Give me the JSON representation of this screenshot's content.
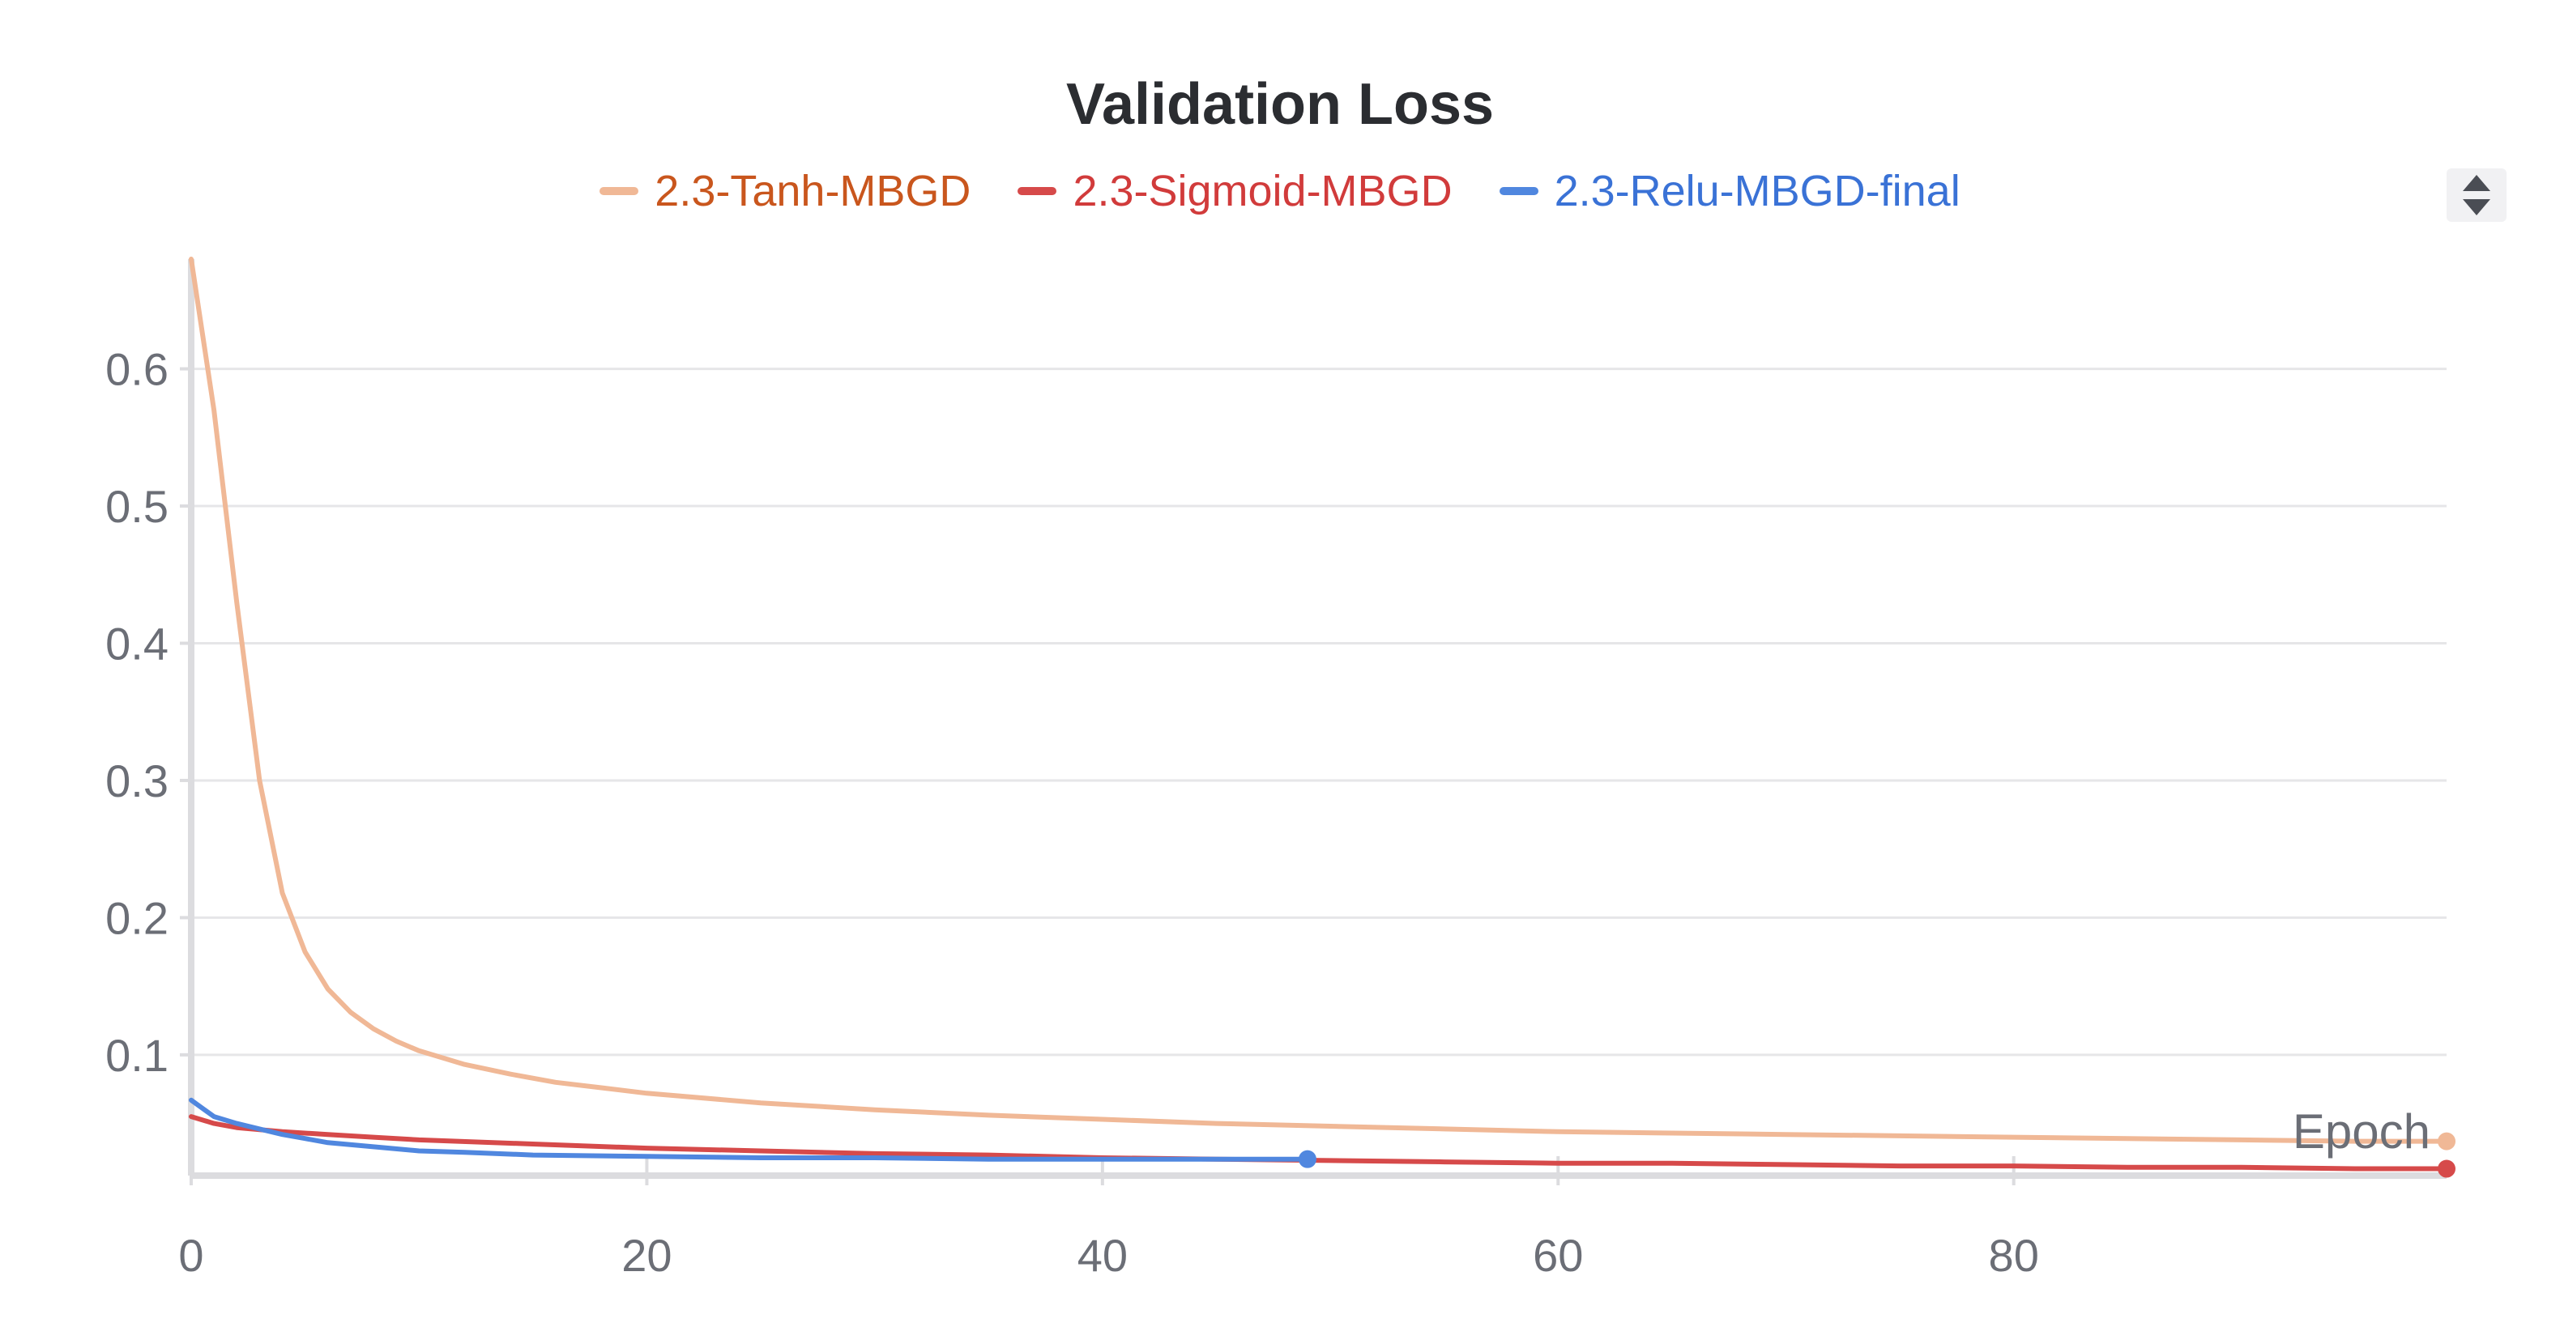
{
  "chart_data": {
    "type": "line",
    "title": "Validation Loss",
    "xlabel": "Epoch",
    "ylabel": "",
    "xlim": [
      0,
      99
    ],
    "ylim": [
      0.012,
      0.68
    ],
    "xticks": [
      0,
      20,
      40,
      60,
      80
    ],
    "yticks": [
      0.1,
      0.2,
      0.3,
      0.4,
      0.5,
      0.6
    ],
    "grid": true,
    "legend_position": "top",
    "series": [
      {
        "name": "2.3-Tanh-MBGD",
        "color": "#f0b896",
        "label_color": "#c9561d",
        "x": [
          0,
          1,
          2,
          3,
          4,
          5,
          6,
          7,
          8,
          9,
          10,
          12,
          14,
          16,
          18,
          20,
          25,
          30,
          35,
          40,
          45,
          50,
          55,
          60,
          65,
          70,
          75,
          80,
          85,
          90,
          95,
          99
        ],
        "y": [
          0.68,
          0.57,
          0.43,
          0.3,
          0.218,
          0.175,
          0.148,
          0.131,
          0.119,
          0.11,
          0.103,
          0.093,
          0.086,
          0.08,
          0.076,
          0.072,
          0.065,
          0.06,
          0.056,
          0.053,
          0.05,
          0.048,
          0.046,
          0.044,
          0.043,
          0.042,
          0.041,
          0.04,
          0.039,
          0.038,
          0.037,
          0.037
        ]
      },
      {
        "name": "2.3-Sigmoid-MBGD",
        "color": "#d64a4a",
        "label_color": "#d13b3b",
        "x": [
          0,
          1,
          2,
          4,
          6,
          8,
          10,
          15,
          20,
          25,
          30,
          35,
          40,
          45,
          50,
          55,
          60,
          65,
          70,
          75,
          80,
          85,
          90,
          95,
          99
        ],
        "y": [
          0.055,
          0.05,
          0.047,
          0.044,
          0.042,
          0.04,
          0.038,
          0.035,
          0.032,
          0.03,
          0.028,
          0.027,
          0.025,
          0.024,
          0.023,
          0.022,
          0.021,
          0.021,
          0.02,
          0.019,
          0.019,
          0.018,
          0.018,
          0.017,
          0.017
        ]
      },
      {
        "name": "2.3-Relu-MBGD-final",
        "color": "#5087df",
        "label_color": "#3a72d6",
        "x": [
          0,
          1,
          2,
          3,
          4,
          5,
          6,
          8,
          10,
          12,
          15,
          20,
          25,
          30,
          35,
          40,
          45,
          49
        ],
        "y": [
          0.067,
          0.055,
          0.05,
          0.046,
          0.042,
          0.039,
          0.036,
          0.033,
          0.03,
          0.029,
          0.027,
          0.026,
          0.025,
          0.025,
          0.024,
          0.024,
          0.024,
          0.024
        ]
      }
    ]
  },
  "controls": {
    "legend_toggle_icon": "sort-toggle-icon"
  }
}
